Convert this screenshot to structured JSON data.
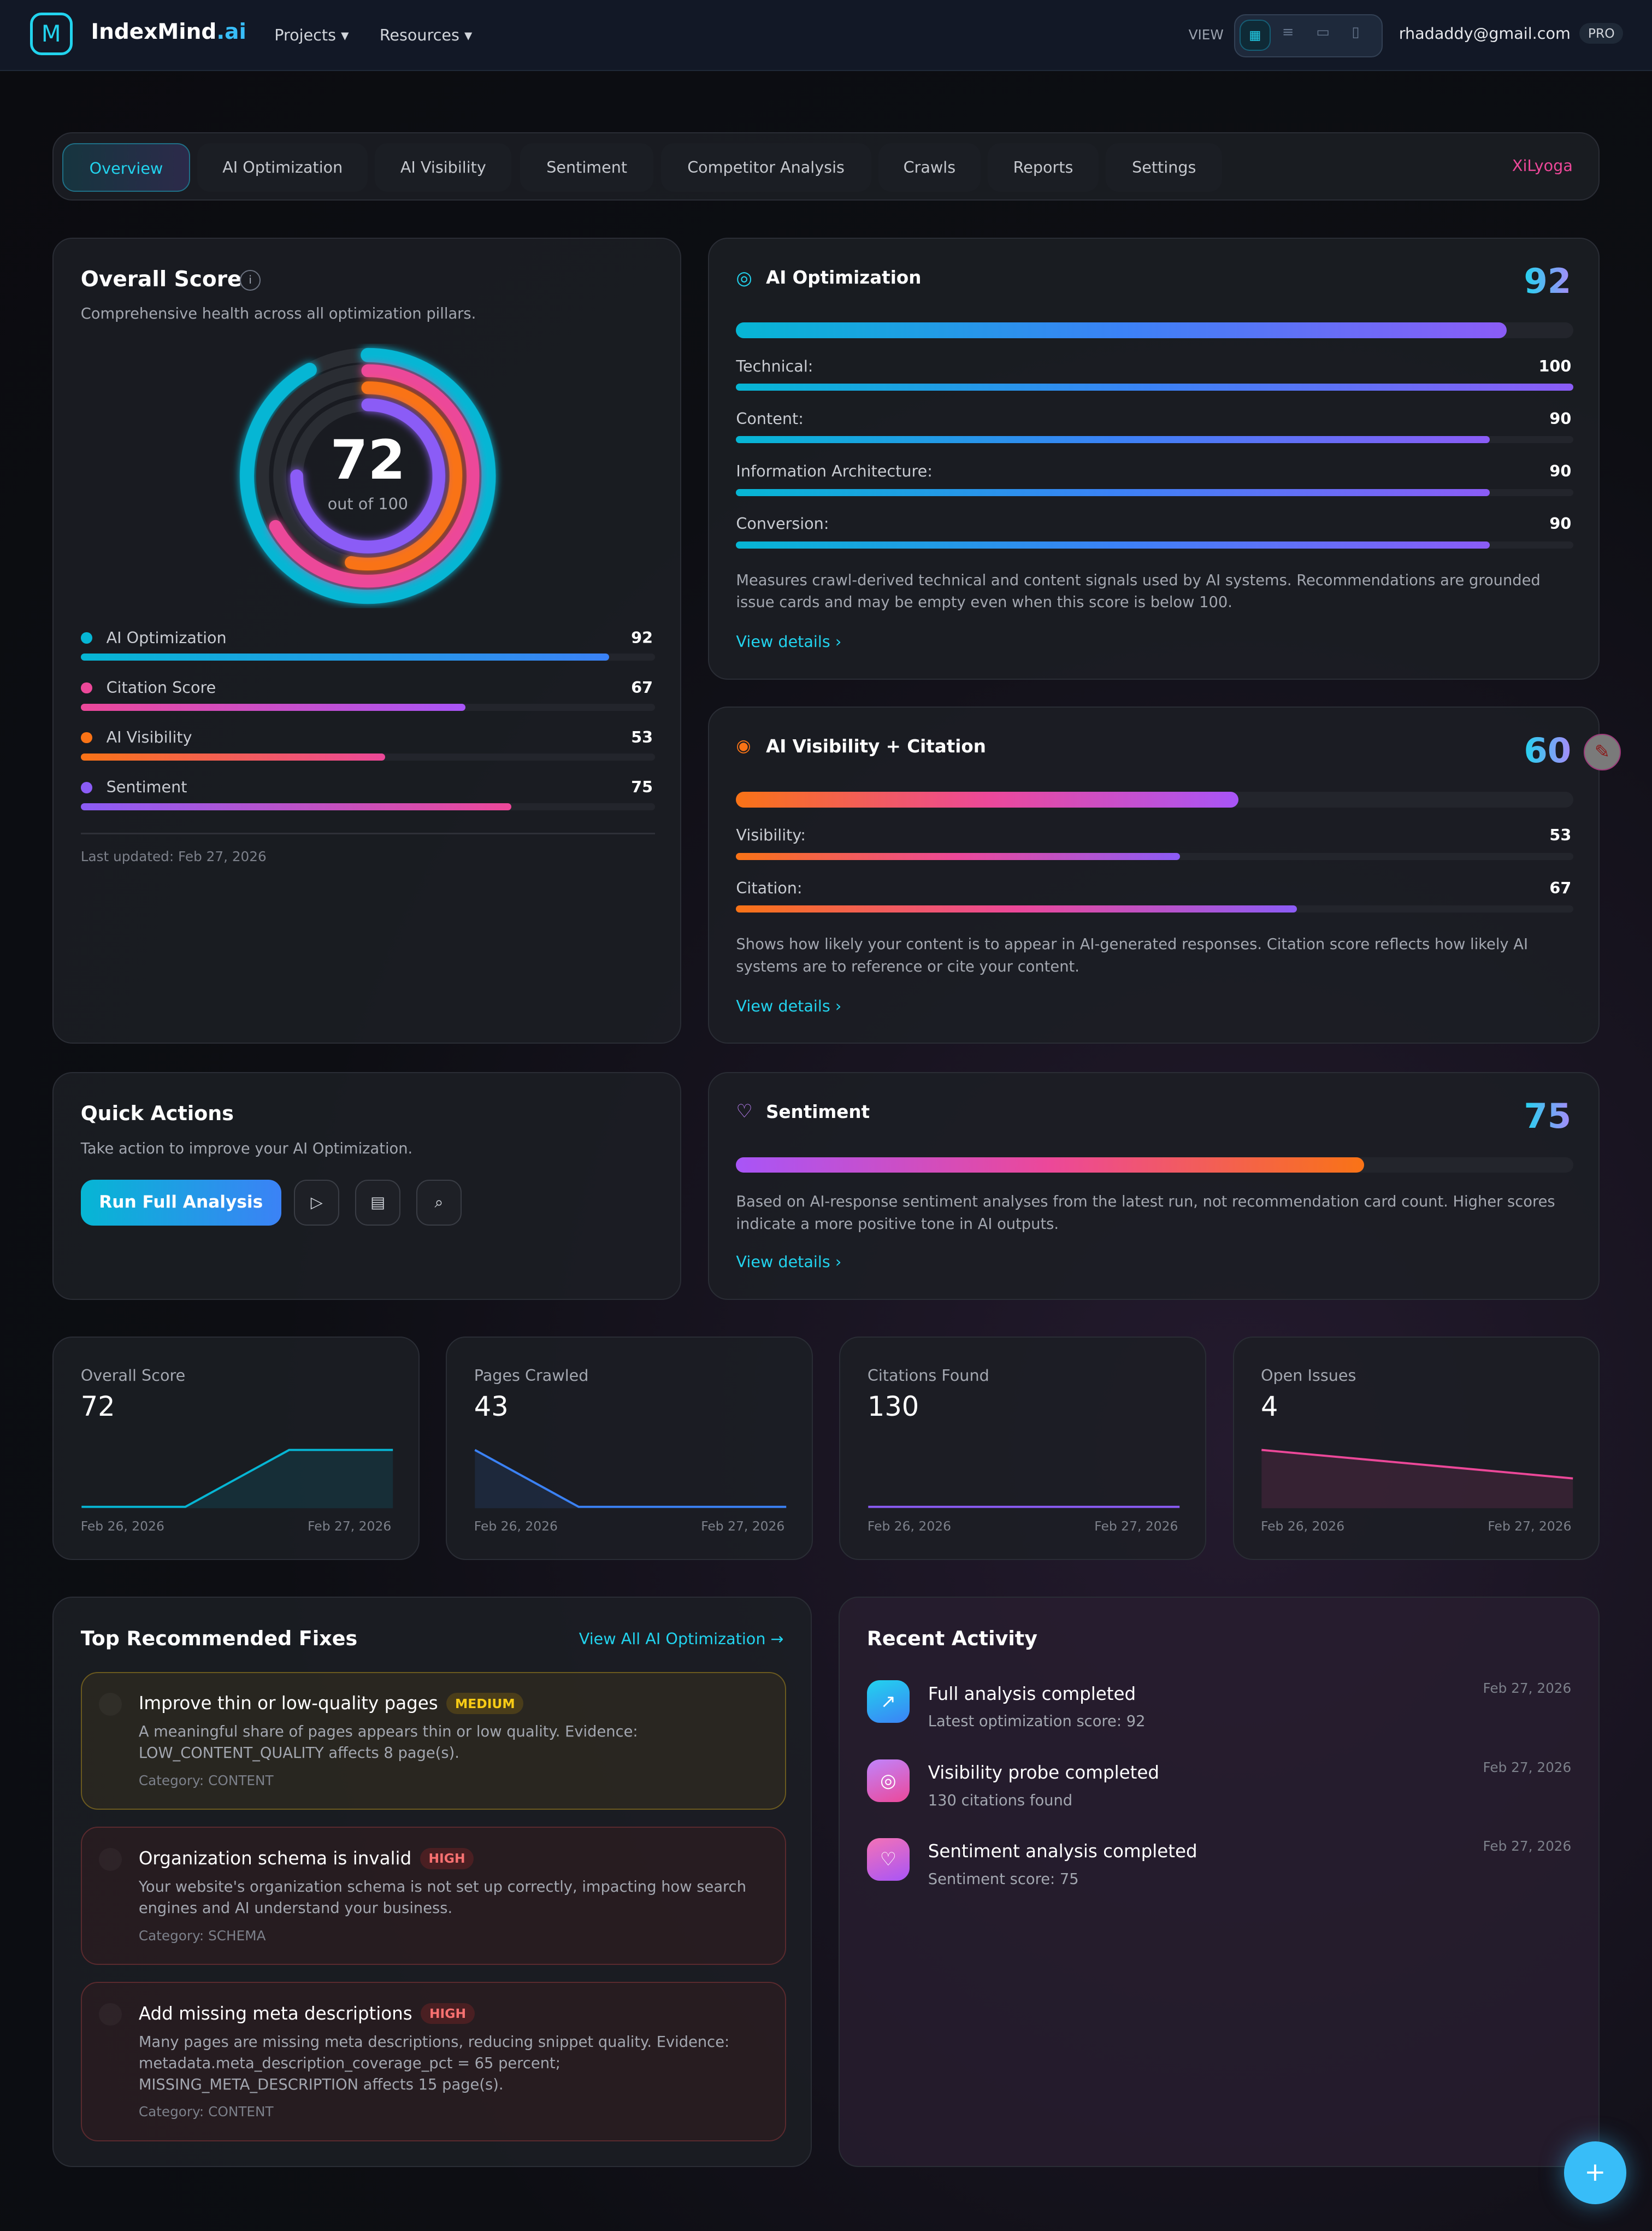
{
  "header": {
    "brand": "IndexMind",
    "brand_suffix": ".ai",
    "nav": [
      "Projects ▾",
      "Resources ▾"
    ],
    "view_label": "VIEW",
    "email": "rhadaddy@gmail.com",
    "plan": "PRO"
  },
  "tabs": [
    {
      "label": "Overview",
      "active": true
    },
    {
      "label": "AI Optimization"
    },
    {
      "label": "AI Visibility"
    },
    {
      "label": "Sentiment"
    },
    {
      "label": "Competitor Analysis"
    },
    {
      "label": "Crawls"
    },
    {
      "label": "Reports"
    },
    {
      "label": "Settings"
    }
  ],
  "project": "XiLyoga",
  "overall": {
    "title": "Overall Score",
    "subtitle": "Comprehensive health across all optimization pillars.",
    "score": "72",
    "out_of": "out of 100",
    "pillars": [
      {
        "label": "AI Optimization",
        "value": 92,
        "color": "#06b6d4"
      },
      {
        "label": "Citation Score",
        "value": 67,
        "color": "#ec4899"
      },
      {
        "label": "AI Visibility",
        "value": 53,
        "color": "#f97316"
      },
      {
        "label": "Sentiment",
        "value": 75,
        "color": "#8b5cf6"
      }
    ],
    "updated": "Last updated: Feb 27, 2026"
  },
  "ai_opt": {
    "title": "AI Optimization",
    "score": "92",
    "items": [
      {
        "label": "Technical:",
        "value": 100
      },
      {
        "label": "Content:",
        "value": 90
      },
      {
        "label": "Information Architecture:",
        "value": 90
      },
      {
        "label": "Conversion:",
        "value": 90
      }
    ],
    "desc": "Measures crawl-derived technical and content signals used by AI systems. Recommendations are grounded issue cards and may be empty even when this score is below 100.",
    "link": "View details ›"
  },
  "ai_vis": {
    "title": "AI Visibility + Citation",
    "score": "60",
    "items": [
      {
        "label": "Visibility:",
        "value": 53
      },
      {
        "label": "Citation:",
        "value": 67
      }
    ],
    "desc": "Shows how likely your content is to appear in AI-generated responses. Citation score reflects how likely AI systems are to reference or cite your content.",
    "link": "View details ›"
  },
  "quick": {
    "title": "Quick Actions",
    "subtitle": "Take action to improve your AI Optimization.",
    "run": "Run Full Analysis"
  },
  "sentiment": {
    "title": "Sentiment",
    "score": "75",
    "desc": "Based on AI-response sentiment analyses from the latest run, not recommendation card count. Higher scores indicate a more positive tone in AI outputs.",
    "link": "View details ›"
  },
  "stats": [
    {
      "title": "Overall Score",
      "value": "72",
      "from": "Feb 26, 2026",
      "to": "Feb 27, 2026",
      "color": "#06b6d4"
    },
    {
      "title": "Pages Crawled",
      "value": "43",
      "from": "Feb 26, 2026",
      "to": "Feb 27, 2026",
      "color": "#3b82f6"
    },
    {
      "title": "Citations Found",
      "value": "130",
      "from": "Feb 26, 2026",
      "to": "Feb 27, 2026",
      "color": "#8b5cf6"
    },
    {
      "title": "Open Issues",
      "value": "4",
      "from": "Feb 26, 2026",
      "to": "Feb 27, 2026",
      "color": "#ec4899"
    }
  ],
  "fixes": {
    "title": "Top Recommended Fixes",
    "link": "View All AI Optimization →",
    "items": [
      {
        "title": "Improve thin or low-quality pages",
        "severity": "MEDIUM",
        "desc": "A meaningful share of pages appears thin or low quality. Evidence: LOW_CONTENT_QUALITY affects 8 page(s).",
        "category": "Category: CONTENT"
      },
      {
        "title": "Organization schema is invalid",
        "severity": "HIGH",
        "desc": "Your website's organization schema is not set up correctly, impacting how search engines and AI understand your business.",
        "category": "Category: SCHEMA"
      },
      {
        "title": "Add missing meta descriptions",
        "severity": "HIGH",
        "desc": "Many pages are missing meta descriptions, reducing snippet quality. Evidence: metadata.meta_description_coverage_pct = 65 percent; MISSING_META_DESCRIPTION affects 15 page(s).",
        "category": "Category: CONTENT"
      }
    ]
  },
  "activity": {
    "title": "Recent Activity",
    "items": [
      {
        "title": "Full analysis completed",
        "sub": "Latest optimization score: 92",
        "date": "Feb 27, 2026",
        "icon": "trending-up-icon"
      },
      {
        "title": "Visibility probe completed",
        "sub": "130 citations found",
        "date": "Feb 27, 2026",
        "icon": "eye-icon"
      },
      {
        "title": "Sentiment analysis completed",
        "sub": "Sentiment score: 75",
        "date": "Feb 27, 2026",
        "icon": "heart-icon"
      }
    ]
  },
  "fab": "+"
}
